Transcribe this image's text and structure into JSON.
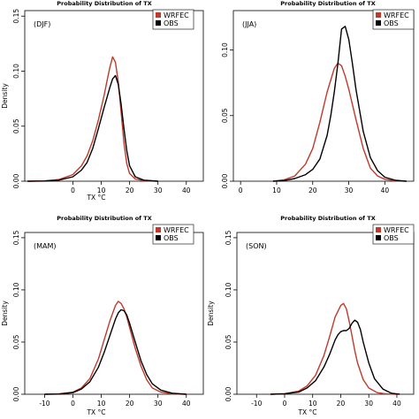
{
  "chart_data": [
    {
      "type": "line",
      "title": "Probability Distribution of TX",
      "annotation": "(DJF)",
      "xlabel": "TX °C",
      "ylabel": "Density",
      "xlim": [
        -17,
        46
      ],
      "ylim": [
        0,
        0.155
      ],
      "xticks": [
        "0",
        "10",
        "20",
        "30",
        "40"
      ],
      "xtick_values": [
        0,
        10,
        20,
        30,
        40
      ],
      "yticks": [
        "0.00",
        "0.05",
        "0.10",
        "0.15"
      ],
      "ytick_values": [
        0,
        0.05,
        0.1,
        0.15
      ],
      "legend": "top-right",
      "grid": false,
      "series": [
        {
          "name": "WRFEC",
          "color": "#c0392b",
          "x": [
            -16,
            -10,
            -5,
            0,
            3,
            5,
            7,
            9,
            11,
            12,
            13,
            14,
            15,
            16,
            17,
            18,
            19,
            20,
            22,
            25,
            30
          ],
          "y": [
            0,
            0.0003,
            0.0015,
            0.006,
            0.014,
            0.023,
            0.037,
            0.056,
            0.078,
            0.091,
            0.103,
            0.113,
            0.108,
            0.09,
            0.063,
            0.035,
            0.016,
            0.007,
            0.002,
            0.0005,
            0
          ]
        },
        {
          "name": "OBS",
          "color": "#000000",
          "x": [
            -16,
            -10,
            -5,
            0,
            3,
            5,
            7,
            9,
            11,
            12,
            13,
            14,
            15,
            16,
            17,
            18,
            19,
            20,
            22,
            25,
            30
          ],
          "y": [
            0,
            0.0002,
            0.001,
            0.004,
            0.01,
            0.017,
            0.03,
            0.048,
            0.067,
            0.076,
            0.085,
            0.093,
            0.096,
            0.088,
            0.07,
            0.048,
            0.028,
            0.014,
            0.004,
            0.001,
            0
          ]
        }
      ]
    },
    {
      "type": "line",
      "title": "Probability Distribution of TX",
      "annotation": "(JJA)",
      "xlabel": "",
      "ylabel": "",
      "xlim": [
        -2,
        48
      ],
      "ylim": [
        0,
        0.13
      ],
      "xticks": [
        "0",
        "10",
        "20",
        "30",
        "40"
      ],
      "xtick_values": [
        0,
        10,
        20,
        30,
        40
      ],
      "yticks": [
        "0.00",
        "0.05",
        "0.10"
      ],
      "ytick_values": [
        0,
        0.05,
        0.1
      ],
      "legend": "top-right",
      "grid": false,
      "series": [
        {
          "name": "WRFEC",
          "color": "#c0392b",
          "x": [
            9,
            12,
            15,
            18,
            20,
            22,
            24,
            26,
            27,
            28,
            29,
            30,
            32,
            34,
            36,
            38,
            40,
            43,
            46
          ],
          "y": [
            0,
            0.001,
            0.004,
            0.013,
            0.025,
            0.045,
            0.068,
            0.086,
            0.09,
            0.088,
            0.08,
            0.07,
            0.047,
            0.025,
            0.01,
            0.004,
            0.0015,
            0.0003,
            0
          ]
        },
        {
          "name": "OBS",
          "color": "#000000",
          "x": [
            9,
            12,
            15,
            18,
            20,
            22,
            24,
            25,
            26,
            27,
            28,
            29,
            30,
            31,
            32,
            34,
            36,
            38,
            40,
            43,
            46
          ],
          "y": [
            0,
            0.0005,
            0.002,
            0.005,
            0.009,
            0.017,
            0.035,
            0.05,
            0.068,
            0.09,
            0.116,
            0.118,
            0.108,
            0.09,
            0.07,
            0.038,
            0.018,
            0.008,
            0.003,
            0.0007,
            0
          ]
        }
      ]
    },
    {
      "type": "line",
      "title": "Probability Distribution of TX",
      "annotation": "(MAM)",
      "xlabel": "TX °C",
      "ylabel": "Density",
      "xlim": [
        -17,
        46
      ],
      "ylim": [
        0,
        0.155
      ],
      "xticks": [
        "-10",
        "0",
        "10",
        "20",
        "30",
        "40"
      ],
      "xtick_values": [
        -10,
        0,
        10,
        20,
        30,
        40
      ],
      "yticks": [
        "0.00",
        "0.05",
        "0.10",
        "0.15"
      ],
      "ytick_values": [
        0,
        0.05,
        0.1,
        0.15
      ],
      "legend": "top-right",
      "grid": false,
      "series": [
        {
          "name": "WRFEC",
          "color": "#c0392b",
          "x": [
            -10,
            -5,
            0,
            3,
            6,
            9,
            11,
            13,
            15,
            16,
            17,
            18,
            19,
            20,
            22,
            24,
            26,
            28,
            31,
            35,
            40
          ],
          "y": [
            0,
            0.0003,
            0.002,
            0.006,
            0.015,
            0.034,
            0.052,
            0.07,
            0.085,
            0.089,
            0.087,
            0.082,
            0.074,
            0.064,
            0.044,
            0.027,
            0.014,
            0.006,
            0.002,
            0.0004,
            0
          ]
        },
        {
          "name": "OBS",
          "color": "#000000",
          "x": [
            -10,
            -5,
            0,
            3,
            6,
            9,
            11,
            13,
            15,
            16,
            17,
            18,
            19,
            20,
            22,
            24,
            26,
            28,
            31,
            35,
            40
          ],
          "y": [
            0,
            0.0002,
            0.0015,
            0.005,
            0.012,
            0.026,
            0.04,
            0.056,
            0.072,
            0.078,
            0.081,
            0.08,
            0.076,
            0.068,
            0.05,
            0.032,
            0.019,
            0.01,
            0.004,
            0.001,
            0
          ]
        }
      ]
    },
    {
      "type": "line",
      "title": "Probability Distribution of TX",
      "annotation": "(SON)",
      "xlabel": "TX °C",
      "ylabel": "Density",
      "xlim": [
        -17,
        46
      ],
      "ylim": [
        0,
        0.155
      ],
      "xticks": [
        "-10",
        "0",
        "10",
        "20",
        "30",
        "40"
      ],
      "xtick_values": [
        -10,
        0,
        10,
        20,
        30,
        40
      ],
      "yticks": [
        "0.00",
        "0.05",
        "0.10",
        "0.15"
      ],
      "ytick_values": [
        0,
        0.05,
        0.1,
        0.15
      ],
      "legend": "top-right",
      "grid": false,
      "series": [
        {
          "name": "WRFEC",
          "color": "#c0392b",
          "x": [
            -5,
            0,
            5,
            8,
            11,
            14,
            16,
            18,
            20,
            21,
            22,
            23,
            24,
            25,
            26,
            28,
            30,
            33,
            36,
            40
          ],
          "y": [
            0,
            0.0005,
            0.003,
            0.008,
            0.018,
            0.037,
            0.055,
            0.074,
            0.085,
            0.087,
            0.082,
            0.07,
            0.056,
            0.042,
            0.03,
            0.014,
            0.006,
            0.0015,
            0.0003,
            0
          ]
        },
        {
          "name": "OBS",
          "color": "#000000",
          "x": [
            -5,
            0,
            5,
            8,
            11,
            14,
            16,
            18,
            19,
            20,
            21,
            22,
            23,
            24,
            25,
            26,
            27,
            28,
            30,
            32,
            35,
            38,
            41
          ],
          "y": [
            0,
            0.0005,
            0.002,
            0.006,
            0.013,
            0.026,
            0.038,
            0.052,
            0.057,
            0.06,
            0.061,
            0.061,
            0.063,
            0.068,
            0.071,
            0.069,
            0.062,
            0.05,
            0.03,
            0.015,
            0.005,
            0.001,
            0
          ]
        }
      ]
    }
  ]
}
